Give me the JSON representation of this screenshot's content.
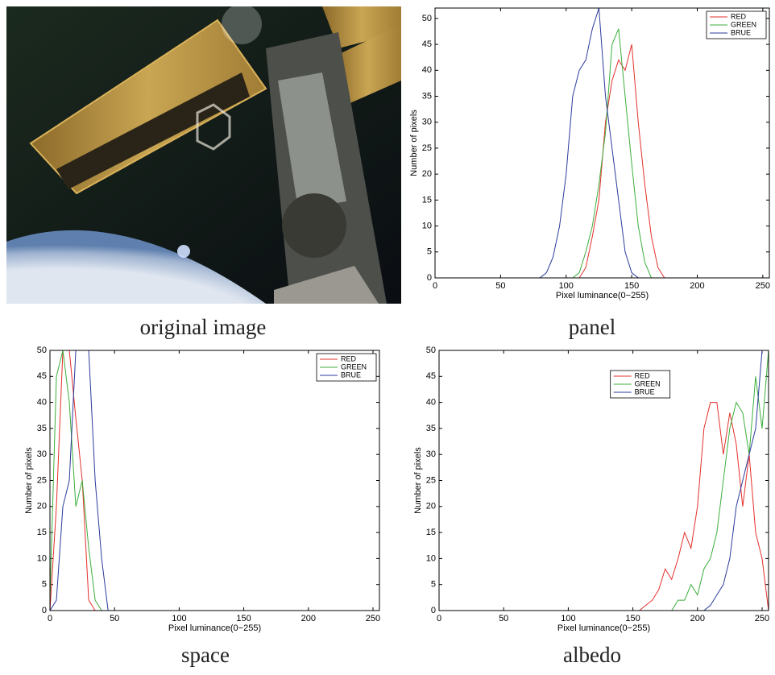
{
  "image_caption": "original image",
  "chart_data": [
    {
      "type": "line",
      "caption": "panel",
      "xlabel": "Pixel luminance(0−255)",
      "ylabel": "Number of pixels",
      "xlim": [
        0,
        255
      ],
      "ylim": [
        0,
        52
      ],
      "xticks": [
        0,
        50,
        100,
        150,
        200,
        250
      ],
      "yticks": [
        0,
        5,
        10,
        15,
        20,
        25,
        30,
        35,
        40,
        45,
        50
      ],
      "legend": "upper right",
      "x": [
        0,
        5,
        10,
        15,
        20,
        25,
        30,
        35,
        40,
        45,
        50,
        55,
        60,
        65,
        70,
        75,
        80,
        85,
        90,
        95,
        100,
        105,
        110,
        115,
        120,
        125,
        130,
        135,
        140,
        145,
        150,
        155,
        160,
        165,
        170,
        175,
        180,
        185,
        190,
        195,
        200,
        205,
        210,
        215,
        220,
        225,
        230,
        235,
        240,
        245,
        250,
        255
      ],
      "series": [
        {
          "name": "RED",
          "color": "#e3302b",
          "values": [
            0,
            0,
            0,
            0,
            0,
            0,
            0,
            0,
            0,
            0,
            0,
            0,
            0,
            0,
            0,
            0,
            0,
            0,
            0,
            0,
            0,
            0,
            0,
            2,
            8,
            15,
            30,
            38,
            42,
            40,
            45,
            30,
            18,
            8,
            2,
            0,
            0,
            0,
            0,
            0,
            0,
            0,
            0,
            0,
            0,
            0,
            0,
            0,
            0,
            0,
            0,
            0
          ]
        },
        {
          "name": "GREEN",
          "color": "#3cae3c",
          "values": [
            0,
            0,
            0,
            0,
            0,
            0,
            0,
            0,
            0,
            0,
            0,
            0,
            0,
            0,
            0,
            0,
            0,
            0,
            0,
            0,
            0,
            0,
            1,
            5,
            10,
            18,
            28,
            45,
            48,
            35,
            22,
            10,
            3,
            0,
            0,
            0,
            0,
            0,
            0,
            0,
            0,
            0,
            0,
            0,
            0,
            0,
            0,
            0,
            0,
            0,
            0,
            0
          ]
        },
        {
          "name": "BRUE",
          "color": "#2b3a9c",
          "values": [
            0,
            0,
            0,
            0,
            0,
            0,
            0,
            0,
            0,
            0,
            0,
            0,
            0,
            0,
            0,
            0,
            0,
            1,
            4,
            10,
            20,
            35,
            40,
            42,
            48,
            52,
            35,
            25,
            15,
            5,
            1,
            0,
            0,
            0,
            0,
            0,
            0,
            0,
            0,
            0,
            0,
            0,
            0,
            0,
            0,
            0,
            0,
            0,
            0,
            0,
            0,
            0
          ]
        }
      ]
    },
    {
      "type": "line",
      "caption": "space",
      "xlabel": "Pixel luminance(0−255)",
      "ylabel": "Number of pixels",
      "xlim": [
        0,
        255
      ],
      "ylim": [
        0,
        50
      ],
      "xticks": [
        0,
        50,
        100,
        150,
        200,
        250
      ],
      "yticks": [
        0,
        5,
        10,
        15,
        20,
        25,
        30,
        35,
        40,
        45,
        50
      ],
      "legend": "upper right",
      "x": [
        0,
        5,
        10,
        15,
        20,
        25,
        30,
        35,
        40,
        45,
        50,
        55,
        60,
        65,
        70,
        75,
        80,
        85,
        90,
        95,
        100,
        105,
        110,
        115,
        120,
        125,
        130,
        135,
        140,
        145,
        150,
        155,
        160,
        165,
        170,
        175,
        180,
        185,
        190,
        195,
        200,
        205,
        210,
        215,
        220,
        225,
        230,
        235,
        240,
        245,
        250,
        255
      ],
      "series": [
        {
          "name": "RED",
          "color": "#e3302b",
          "values": [
            0,
            20,
            50,
            50,
            37,
            25,
            2,
            0,
            0,
            0,
            0,
            0,
            0,
            0,
            0,
            0,
            0,
            0,
            0,
            0,
            0,
            0,
            0,
            0,
            0,
            0,
            0,
            0,
            0,
            0,
            0,
            0,
            0,
            0,
            0,
            0,
            0,
            0,
            0,
            0,
            0,
            0,
            0,
            0,
            0,
            0,
            0,
            0,
            0,
            0,
            0,
            0
          ]
        },
        {
          "name": "GREEN",
          "color": "#3cae3c",
          "values": [
            2,
            45,
            50,
            40,
            20,
            25,
            12,
            2,
            0,
            0,
            0,
            0,
            0,
            0,
            0,
            0,
            0,
            0,
            0,
            0,
            0,
            0,
            0,
            0,
            0,
            0,
            0,
            0,
            0,
            0,
            0,
            0,
            0,
            0,
            0,
            0,
            0,
            0,
            0,
            0,
            0,
            0,
            0,
            0,
            0,
            0,
            0,
            0,
            0,
            0,
            0,
            0
          ]
        },
        {
          "name": "BRUE",
          "color": "#2b3a9c",
          "values": [
            0,
            2,
            20,
            25,
            50,
            50,
            50,
            25,
            10,
            0,
            0,
            0,
            0,
            0,
            0,
            0,
            0,
            0,
            0,
            0,
            0,
            0,
            0,
            0,
            0,
            0,
            0,
            0,
            0,
            0,
            0,
            0,
            0,
            0,
            0,
            0,
            0,
            0,
            0,
            0,
            0,
            0,
            0,
            0,
            0,
            0,
            0,
            0,
            0,
            0,
            0,
            0
          ]
        }
      ]
    },
    {
      "type": "line",
      "caption": "albedo",
      "xlabel": "Pixel luminance(0−255)",
      "ylabel": "Number of pixels",
      "xlim": [
        0,
        255
      ],
      "ylim": [
        0,
        50
      ],
      "xticks": [
        0,
        50,
        100,
        150,
        200,
        250
      ],
      "yticks": [
        0,
        5,
        10,
        15,
        20,
        25,
        30,
        35,
        40,
        45,
        50
      ],
      "legend": "upper center",
      "x": [
        0,
        5,
        10,
        15,
        20,
        25,
        30,
        35,
        40,
        45,
        50,
        55,
        60,
        65,
        70,
        75,
        80,
        85,
        90,
        95,
        100,
        105,
        110,
        115,
        120,
        125,
        130,
        135,
        140,
        145,
        150,
        155,
        160,
        165,
        170,
        175,
        180,
        185,
        190,
        195,
        200,
        205,
        210,
        215,
        220,
        225,
        230,
        235,
        240,
        245,
        250,
        255
      ],
      "series": [
        {
          "name": "RED",
          "color": "#e3302b",
          "values": [
            0,
            0,
            0,
            0,
            0,
            0,
            0,
            0,
            0,
            0,
            0,
            0,
            0,
            0,
            0,
            0,
            0,
            0,
            0,
            0,
            0,
            0,
            0,
            0,
            0,
            0,
            0,
            0,
            0,
            0,
            0,
            0,
            1,
            2,
            4,
            8,
            6,
            10,
            15,
            12,
            20,
            35,
            40,
            40,
            30,
            38,
            32,
            20,
            30,
            15,
            10,
            0
          ]
        },
        {
          "name": "GREEN",
          "color": "#3cae3c",
          "values": [
            0,
            0,
            0,
            0,
            0,
            0,
            0,
            0,
            0,
            0,
            0,
            0,
            0,
            0,
            0,
            0,
            0,
            0,
            0,
            0,
            0,
            0,
            0,
            0,
            0,
            0,
            0,
            0,
            0,
            0,
            0,
            0,
            0,
            0,
            0,
            0,
            0,
            2,
            2,
            5,
            3,
            8,
            10,
            15,
            25,
            35,
            40,
            38,
            30,
            45,
            35,
            50
          ]
        },
        {
          "name": "BRUE",
          "color": "#2b3a9c",
          "values": [
            0,
            0,
            0,
            0,
            0,
            0,
            0,
            0,
            0,
            0,
            0,
            0,
            0,
            0,
            0,
            0,
            0,
            0,
            0,
            0,
            0,
            0,
            0,
            0,
            0,
            0,
            0,
            0,
            0,
            0,
            0,
            0,
            0,
            0,
            0,
            0,
            0,
            0,
            0,
            0,
            0,
            0,
            1,
            3,
            5,
            10,
            20,
            25,
            30,
            35,
            50,
            50
          ]
        }
      ]
    }
  ]
}
